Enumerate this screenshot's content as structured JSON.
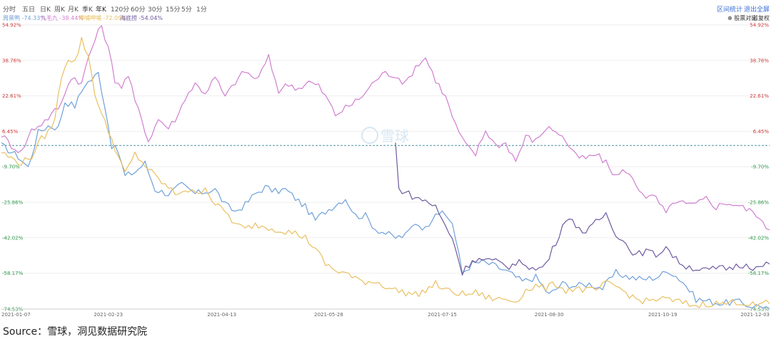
{
  "toolbar": {
    "timeframes": [
      "分时",
      "五日",
      "日K",
      "周K",
      "月K",
      "季K",
      "年K",
      "120分",
      "60分",
      "30分",
      "15分",
      "5分",
      "1分"
    ],
    "active_index": 6,
    "right_links": [
      "区间统计",
      "退出全屏"
    ]
  },
  "legend": {
    "right_links": [
      "股票对比",
      "前复权"
    ]
  },
  "watermark": "雪球",
  "source": "Source：雪球，洞见数据研究院",
  "colors": {
    "series1": "#6fa0d8",
    "series2": "#d07fd0",
    "series3": "#e8c060",
    "series4": "#6f5aa0",
    "positive_label": "#d23b3b",
    "negative_label": "#2e9a4a",
    "baseline": "#4a90a0",
    "grid": "#eeeeee"
  },
  "chart_data": {
    "type": "line",
    "title": "",
    "xlabel": "",
    "ylabel": "",
    "ylim": [
      -74.53,
      54.92
    ],
    "y_ticks": [
      "54.92%",
      "38.76%",
      "22.61%",
      "6.45%",
      "-9.70%",
      "-25.86%",
      "-42.02%",
      "-58.17%",
      "-74.53%"
    ],
    "y_tick_values": [
      54.92,
      38.76,
      22.61,
      6.45,
      -9.7,
      -25.86,
      -42.02,
      -58.17,
      -74.53
    ],
    "x_ticks": [
      "2021-01-07",
      "2021-02-23",
      "2021-04-13",
      "2021-05-28",
      "2021-07-15",
      "2021-08-30",
      "2021-10-19",
      "2021-12-03"
    ],
    "x_tick_index": [
      0,
      32,
      66,
      98,
      132,
      164,
      198,
      230
    ],
    "n_points": 231,
    "grid": true,
    "legend_position": "top-left",
    "series": [
      {
        "name": "周黑鸭",
        "legend_value": "-74.33%",
        "color": "#6fa0d8",
        "anchors": [
          [
            0,
            0
          ],
          [
            5,
            -5
          ],
          [
            8,
            -10
          ],
          [
            11,
            6
          ],
          [
            14,
            9
          ],
          [
            17,
            8
          ],
          [
            19,
            20
          ],
          [
            22,
            18
          ],
          [
            25,
            28
          ],
          [
            27,
            30
          ],
          [
            29,
            33
          ],
          [
            31,
            18
          ],
          [
            33,
            0
          ],
          [
            35,
            -3
          ],
          [
            37,
            -14
          ],
          [
            40,
            -12
          ],
          [
            43,
            -8
          ],
          [
            46,
            -20
          ],
          [
            50,
            -22
          ],
          [
            54,
            -18
          ],
          [
            58,
            -22
          ],
          [
            61,
            -21
          ],
          [
            64,
            -20
          ],
          [
            67,
            -27
          ],
          [
            70,
            -30
          ],
          [
            73,
            -27
          ],
          [
            76,
            -22
          ],
          [
            79,
            -19
          ],
          [
            82,
            -21
          ],
          [
            85,
            -20
          ],
          [
            88,
            -24
          ],
          [
            91,
            -28
          ],
          [
            94,
            -34
          ],
          [
            97,
            -30
          ],
          [
            100,
            -27
          ],
          [
            103,
            -24
          ],
          [
            106,
            -32
          ],
          [
            109,
            -32
          ],
          [
            112,
            -38
          ],
          [
            115,
            -40
          ],
          [
            118,
            -42
          ],
          [
            121,
            -41
          ],
          [
            124,
            -35
          ],
          [
            127,
            -38
          ],
          [
            130,
            -30
          ],
          [
            133,
            -32
          ],
          [
            135,
            -35
          ],
          [
            138,
            -58
          ],
          [
            141,
            -54
          ],
          [
            144,
            -53
          ],
          [
            148,
            -55
          ],
          [
            152,
            -58
          ],
          [
            156,
            -62
          ],
          [
            160,
            -60
          ],
          [
            164,
            -68
          ],
          [
            168,
            -63
          ],
          [
            172,
            -64
          ],
          [
            176,
            -63
          ],
          [
            180,
            -65
          ],
          [
            184,
            -58
          ],
          [
            188,
            -60
          ],
          [
            192,
            -61
          ],
          [
            196,
            -60
          ],
          [
            200,
            -57
          ],
          [
            204,
            -62
          ],
          [
            208,
            -70
          ],
          [
            212,
            -71
          ],
          [
            216,
            -72
          ],
          [
            220,
            -71
          ],
          [
            224,
            -73
          ],
          [
            228,
            -73
          ],
          [
            230,
            -74.33
          ]
        ]
      },
      {
        "name": "九毛九",
        "legend_value": "-38.44%",
        "color": "#d07fd0",
        "anchors": [
          [
            0,
            5
          ],
          [
            3,
            0
          ],
          [
            6,
            -3
          ],
          [
            9,
            7
          ],
          [
            12,
            10
          ],
          [
            15,
            14
          ],
          [
            18,
            19
          ],
          [
            20,
            29
          ],
          [
            22,
            31
          ],
          [
            24,
            28
          ],
          [
            26,
            40
          ],
          [
            28,
            48
          ],
          [
            30,
            55
          ],
          [
            32,
            44
          ],
          [
            34,
            30
          ],
          [
            36,
            27
          ],
          [
            38,
            32
          ],
          [
            40,
            20
          ],
          [
            42,
            12
          ],
          [
            44,
            2
          ],
          [
            47,
            12
          ],
          [
            50,
            8
          ],
          [
            53,
            14
          ],
          [
            55,
            22
          ],
          [
            58,
            28
          ],
          [
            61,
            24
          ],
          [
            64,
            31
          ],
          [
            67,
            22
          ],
          [
            70,
            29
          ],
          [
            73,
            34
          ],
          [
            76,
            30
          ],
          [
            78,
            34
          ],
          [
            80,
            40
          ],
          [
            83,
            25
          ],
          [
            86,
            28
          ],
          [
            89,
            26
          ],
          [
            92,
            29
          ],
          [
            95,
            27
          ],
          [
            98,
            20
          ],
          [
            100,
            14
          ],
          [
            103,
            17
          ],
          [
            106,
            20
          ],
          [
            109,
            24
          ],
          [
            112,
            30
          ],
          [
            115,
            33
          ],
          [
            118,
            32
          ],
          [
            121,
            28
          ],
          [
            124,
            36
          ],
          [
            127,
            40
          ],
          [
            130,
            30
          ],
          [
            133,
            22
          ],
          [
            136,
            9
          ],
          [
            139,
            0
          ],
          [
            142,
            -4
          ],
          [
            145,
            7
          ],
          [
            148,
            0
          ],
          [
            151,
            1
          ],
          [
            154,
            -7
          ],
          [
            157,
            4
          ],
          [
            160,
            2
          ],
          [
            163,
            8
          ],
          [
            166,
            7
          ],
          [
            169,
            2
          ],
          [
            172,
            -5
          ],
          [
            175,
            -6
          ],
          [
            178,
            -4
          ],
          [
            181,
            -8
          ],
          [
            184,
            -14
          ],
          [
            187,
            -11
          ],
          [
            190,
            -18
          ],
          [
            193,
            -23
          ],
          [
            196,
            -24
          ],
          [
            199,
            -31
          ],
          [
            202,
            -25
          ],
          [
            205,
            -27
          ],
          [
            208,
            -27
          ],
          [
            211,
            -24
          ],
          [
            214,
            -28
          ],
          [
            217,
            -26
          ],
          [
            220,
            -27
          ],
          [
            223,
            -29
          ],
          [
            226,
            -31
          ],
          [
            228,
            -36
          ],
          [
            230,
            -38.44
          ]
        ]
      },
      {
        "name": "呷哺呷哺",
        "legend_value": "-72.09%",
        "color": "#e8c060",
        "anchors": [
          [
            0,
            -3
          ],
          [
            3,
            -6
          ],
          [
            6,
            -8
          ],
          [
            9,
            -5
          ],
          [
            12,
            3
          ],
          [
            14,
            6
          ],
          [
            16,
            12
          ],
          [
            18,
            32
          ],
          [
            20,
            40
          ],
          [
            22,
            38
          ],
          [
            24,
            48
          ],
          [
            26,
            41
          ],
          [
            28,
            24
          ],
          [
            30,
            14
          ],
          [
            33,
            3
          ],
          [
            35,
            -5
          ],
          [
            37,
            -13
          ],
          [
            40,
            -4
          ],
          [
            43,
            -9
          ],
          [
            46,
            -14
          ],
          [
            49,
            -18
          ],
          [
            52,
            -22
          ],
          [
            55,
            -20
          ],
          [
            58,
            -22
          ],
          [
            61,
            -19
          ],
          [
            64,
            -27
          ],
          [
            67,
            -30
          ],
          [
            70,
            -36
          ],
          [
            73,
            -38
          ],
          [
            76,
            -36
          ],
          [
            79,
            -37
          ],
          [
            82,
            -38
          ],
          [
            85,
            -39
          ],
          [
            88,
            -40
          ],
          [
            91,
            -42
          ],
          [
            94,
            -47
          ],
          [
            97,
            -54
          ],
          [
            100,
            -57
          ],
          [
            103,
            -58
          ],
          [
            106,
            -61
          ],
          [
            109,
            -62
          ],
          [
            112,
            -62
          ],
          [
            115,
            -64
          ],
          [
            118,
            -66
          ],
          [
            121,
            -67
          ],
          [
            124,
            -68
          ],
          [
            127,
            -66
          ],
          [
            130,
            -63
          ],
          [
            133,
            -66
          ],
          [
            136,
            -67
          ],
          [
            139,
            -68
          ],
          [
            142,
            -67
          ],
          [
            145,
            -69
          ],
          [
            148,
            -70
          ],
          [
            151,
            -70
          ],
          [
            154,
            -71
          ],
          [
            157,
            -66
          ],
          [
            160,
            -64
          ],
          [
            163,
            -65
          ],
          [
            166,
            -63
          ],
          [
            169,
            -66
          ],
          [
            172,
            -65
          ],
          [
            175,
            -66
          ],
          [
            178,
            -66
          ],
          [
            181,
            -63
          ],
          [
            184,
            -64
          ],
          [
            187,
            -67
          ],
          [
            190,
            -70
          ],
          [
            193,
            -71
          ],
          [
            196,
            -70
          ],
          [
            199,
            -70
          ],
          [
            202,
            -71
          ],
          [
            205,
            -72
          ],
          [
            208,
            -73
          ],
          [
            211,
            -72
          ],
          [
            214,
            -72
          ],
          [
            217,
            -72
          ],
          [
            220,
            -71
          ],
          [
            223,
            -72
          ],
          [
            226,
            -73
          ],
          [
            228,
            -72
          ],
          [
            230,
            -72.09
          ]
        ]
      },
      {
        "name": "海底捞",
        "legend_value": "-54.04%",
        "color": "#6f5aa0",
        "start_index": 118,
        "anchors": [
          [
            118,
            1
          ],
          [
            119,
            -20
          ],
          [
            121,
            -21
          ],
          [
            124,
            -24
          ],
          [
            127,
            -25
          ],
          [
            130,
            -28
          ],
          [
            133,
            -37
          ],
          [
            135,
            -42
          ],
          [
            138,
            -58
          ],
          [
            141,
            -52
          ],
          [
            144,
            -52
          ],
          [
            148,
            -53
          ],
          [
            152,
            -55
          ],
          [
            156,
            -53
          ],
          [
            160,
            -57
          ],
          [
            163,
            -54
          ],
          [
            166,
            -44
          ],
          [
            169,
            -33
          ],
          [
            172,
            -36
          ],
          [
            175,
            -40
          ],
          [
            178,
            -35
          ],
          [
            181,
            -31
          ],
          [
            184,
            -40
          ],
          [
            187,
            -45
          ],
          [
            190,
            -50
          ],
          [
            193,
            -48
          ],
          [
            196,
            -50
          ],
          [
            199,
            -46
          ],
          [
            202,
            -52
          ],
          [
            205,
            -55
          ],
          [
            208,
            -56
          ],
          [
            211,
            -57
          ],
          [
            214,
            -56
          ],
          [
            217,
            -56
          ],
          [
            220,
            -55
          ],
          [
            223,
            -54
          ],
          [
            226,
            -56
          ],
          [
            228,
            -55
          ],
          [
            230,
            -54.04
          ]
        ]
      }
    ]
  }
}
